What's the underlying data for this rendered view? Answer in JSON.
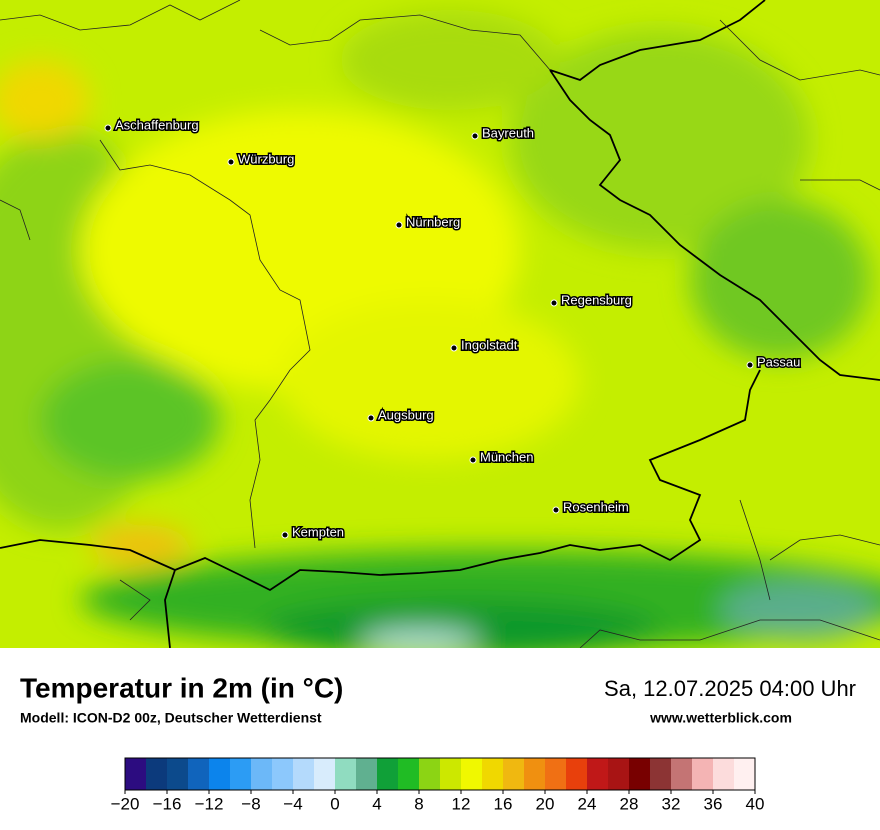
{
  "map": {
    "cities": [
      "Aschaffenburg",
      "Würzburg",
      "Bayreuth",
      "Nürnberg",
      "Regensburg",
      "Ingolstadt",
      "Passau",
      "Augsburg",
      "München",
      "Rosenheim",
      "Kempten"
    ],
    "title": "Temperatur in 2m (in °C)",
    "subtitle": "Modell: ICON-D2 00z, Deutscher Wetterdienst",
    "datetime": "Sa, 12.07.2025 04:00 Uhr",
    "website": "www.wetterblick.com",
    "colorbar": {
      "range": [
        -20,
        40
      ],
      "colors": [
        "#2c0c80",
        "#0c3a7c",
        "#0c4a8c",
        "#1064bc",
        "#0c84ec",
        "#2c9cf4",
        "#6cb8f8",
        "#8cc8fc",
        "#b4dafc",
        "#d8ecfc",
        "#90dcc0",
        "#60b090",
        "#10a038",
        "#20bc24",
        "#8cd414",
        "#cce800",
        "#f0f800",
        "#f0d800",
        "#f0b810",
        "#f09010",
        "#f07014",
        "#e8400c",
        "#c01818",
        "#a81414",
        "#780000",
        "#8c3434",
        "#c47474",
        "#f4b4b4",
        "#fcdcdc",
        "#fff0f0"
      ],
      "ticks": [
        {
          "value": -20,
          "label": "−20"
        },
        {
          "value": -16,
          "label": "−16"
        },
        {
          "value": -12,
          "label": "−12"
        },
        {
          "value": -8,
          "label": "−8"
        },
        {
          "value": -4,
          "label": "−4"
        },
        0,
        4,
        8,
        12,
        16,
        20,
        24,
        28,
        32,
        36,
        40
      ]
    }
  }
}
